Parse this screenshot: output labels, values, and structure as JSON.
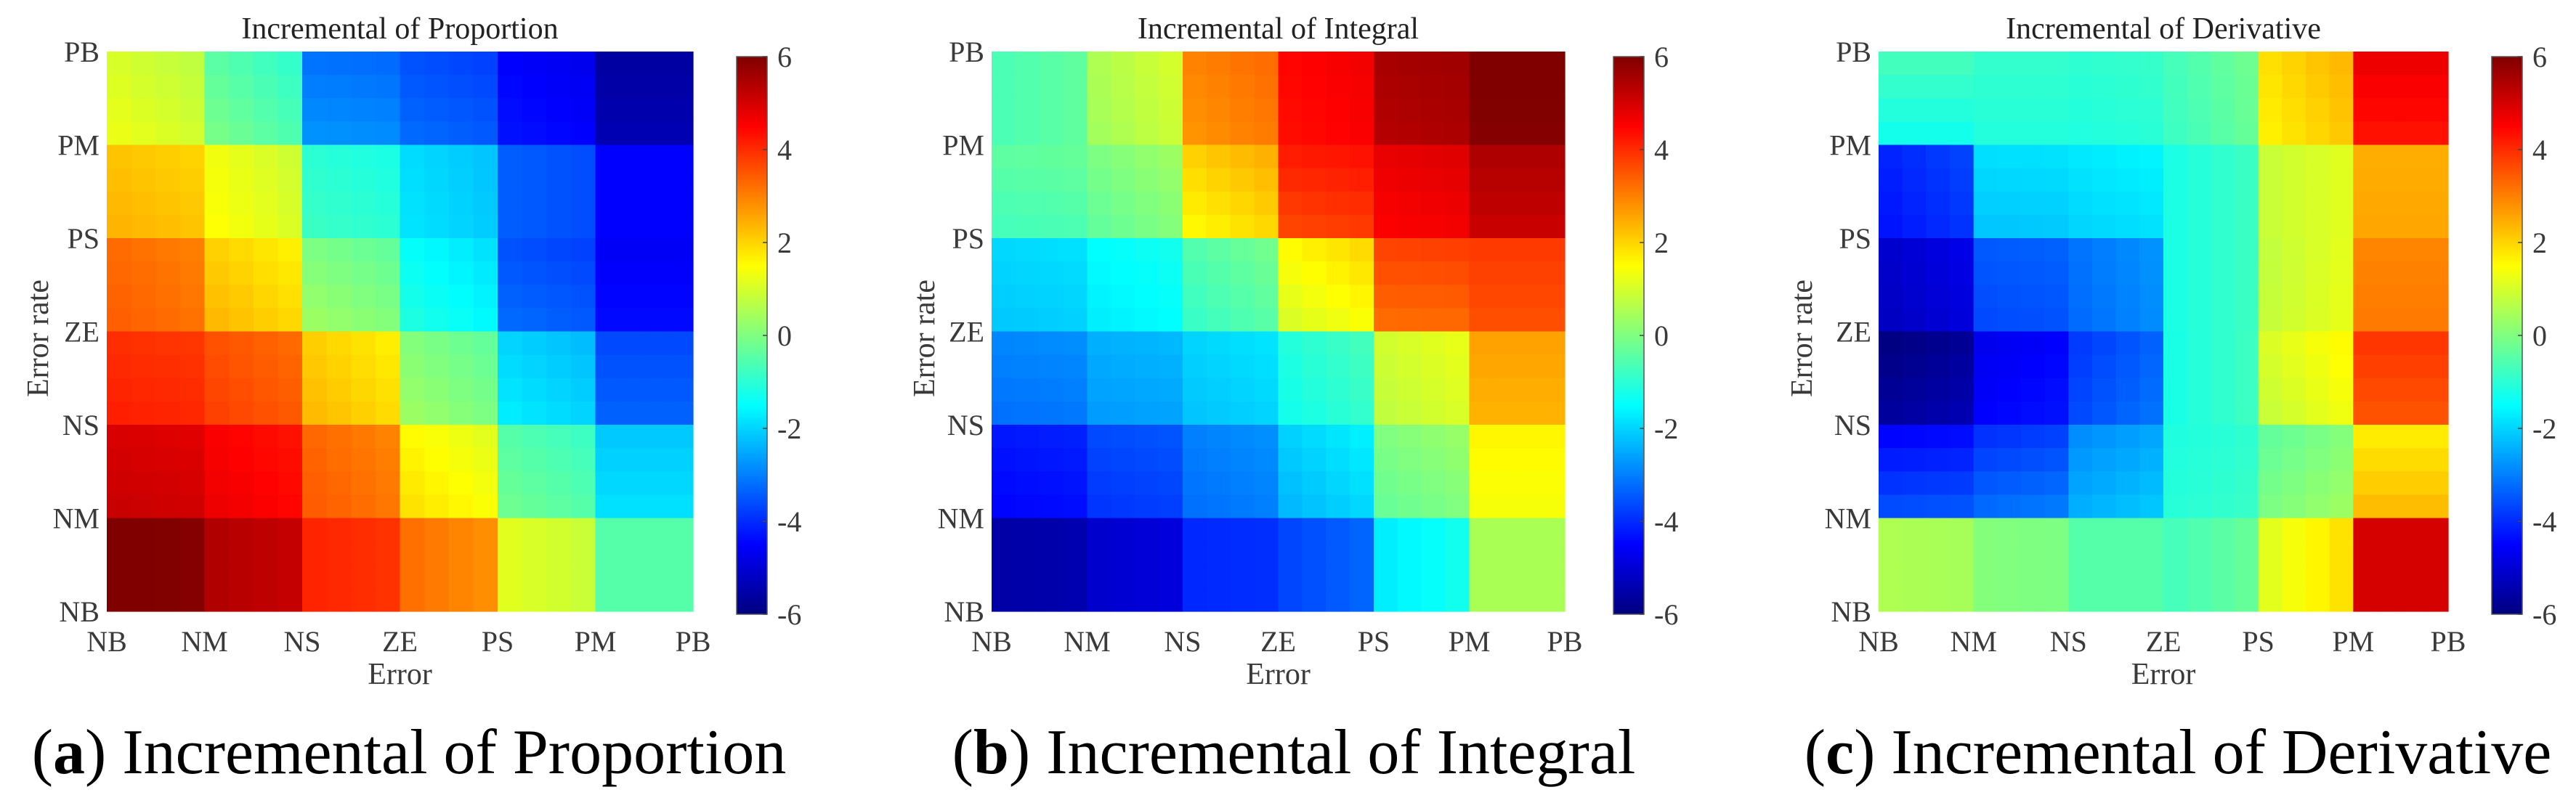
{
  "chart_data": [
    {
      "type": "heatmap",
      "title": "Incremental of Proportion",
      "caption_letter": "a",
      "caption_text": "Incremental of Proportion",
      "xlabel": "Error",
      "ylabel": "Error rate",
      "x_ticks": [
        "NB",
        "NM",
        "NS",
        "ZE",
        "PS",
        "PM",
        "PB"
      ],
      "y_ticks": [
        "NB",
        "NM",
        "NS",
        "ZE",
        "PS",
        "PM",
        "PB"
      ],
      "colormap": "jet",
      "clim": [
        -6,
        6
      ],
      "colorbar_ticks": [
        "6",
        "4",
        "2",
        "0",
        "-2",
        "-4",
        "-6"
      ],
      "grid": false,
      "values_rows_top_to_bottom": [
        [
          1.0,
          -0.5,
          -3.0,
          -3.5,
          -4.5,
          -5.5
        ],
        [
          2.2,
          1.2,
          -1.0,
          -2.0,
          -3.5,
          -4.5
        ],
        [
          3.2,
          2.0,
          0.0,
          -1.5,
          -3.5,
          -4.5
        ],
        [
          4.0,
          3.5,
          2.0,
          0.0,
          -2.0,
          -3.5
        ],
        [
          5.0,
          4.5,
          3.2,
          1.5,
          -0.5,
          -2.0
        ],
        [
          6.0,
          5.3,
          4.0,
          3.0,
          1.0,
          -0.5
        ]
      ]
    },
    {
      "type": "heatmap",
      "title": "Incremental of Integral",
      "caption_letter": "b",
      "caption_text": "Incremental of Integral",
      "xlabel": "Error",
      "ylabel": "Error rate",
      "x_ticks": [
        "NB",
        "NM",
        "NS",
        "ZE",
        "PS",
        "PM",
        "PB"
      ],
      "y_ticks": [
        "NB",
        "NM",
        "NS",
        "ZE",
        "PS",
        "PM",
        "PB"
      ],
      "colormap": "jet",
      "clim": [
        -6,
        6
      ],
      "colorbar_ticks": [
        "6",
        "4",
        "2",
        "0",
        "-2",
        "-4",
        "-6"
      ],
      "grid": false,
      "values_rows_top_to_bottom": [
        [
          -0.5,
          0.7,
          3.0,
          4.5,
          5.5,
          6.0
        ],
        [
          -0.5,
          0.0,
          2.0,
          4.0,
          4.7,
          5.3
        ],
        [
          -2.0,
          -1.5,
          -0.5,
          1.5,
          3.5,
          3.7
        ],
        [
          -3.0,
          -2.5,
          -2.0,
          -1.0,
          1.0,
          2.5
        ],
        [
          -4.3,
          -3.7,
          -3.0,
          -2.0,
          0.0,
          1.5
        ],
        [
          -5.5,
          -5.0,
          -4.0,
          -3.5,
          -1.5,
          0.5
        ]
      ]
    },
    {
      "type": "heatmap",
      "title": "Incremental of Derivative",
      "caption_letter": "c",
      "caption_text": "Incremental of Derivative",
      "xlabel": "Error",
      "ylabel": "Error rate",
      "x_ticks": [
        "NB",
        "NM",
        "NS",
        "ZE",
        "PS",
        "PM",
        "PB"
      ],
      "y_ticks": [
        "NB",
        "NM",
        "NS",
        "ZE",
        "PS",
        "PM",
        "PB"
      ],
      "colormap": "jet",
      "clim": [
        -6,
        6
      ],
      "colorbar_ticks": [
        "6",
        "4",
        "2",
        "0",
        "-2",
        "-4",
        "-6"
      ],
      "grid": false,
      "values_rows_top_to_bottom": [
        [
          -1.0,
          -1.0,
          -1.0,
          -0.5,
          2.0,
          4.5
        ],
        [
          -4.0,
          -2.0,
          -1.8,
          -1.0,
          1.0,
          2.5
        ],
        [
          -5.0,
          -3.5,
          -3.0,
          -1.0,
          1.0,
          3.0
        ],
        [
          -5.7,
          -4.5,
          -3.5,
          -1.0,
          1.2,
          3.7
        ],
        [
          -4.0,
          -3.5,
          -2.5,
          -1.0,
          0.0,
          2.0
        ],
        [
          0.5,
          0.0,
          -0.5,
          -0.5,
          1.5,
          5.0
        ]
      ]
    }
  ]
}
